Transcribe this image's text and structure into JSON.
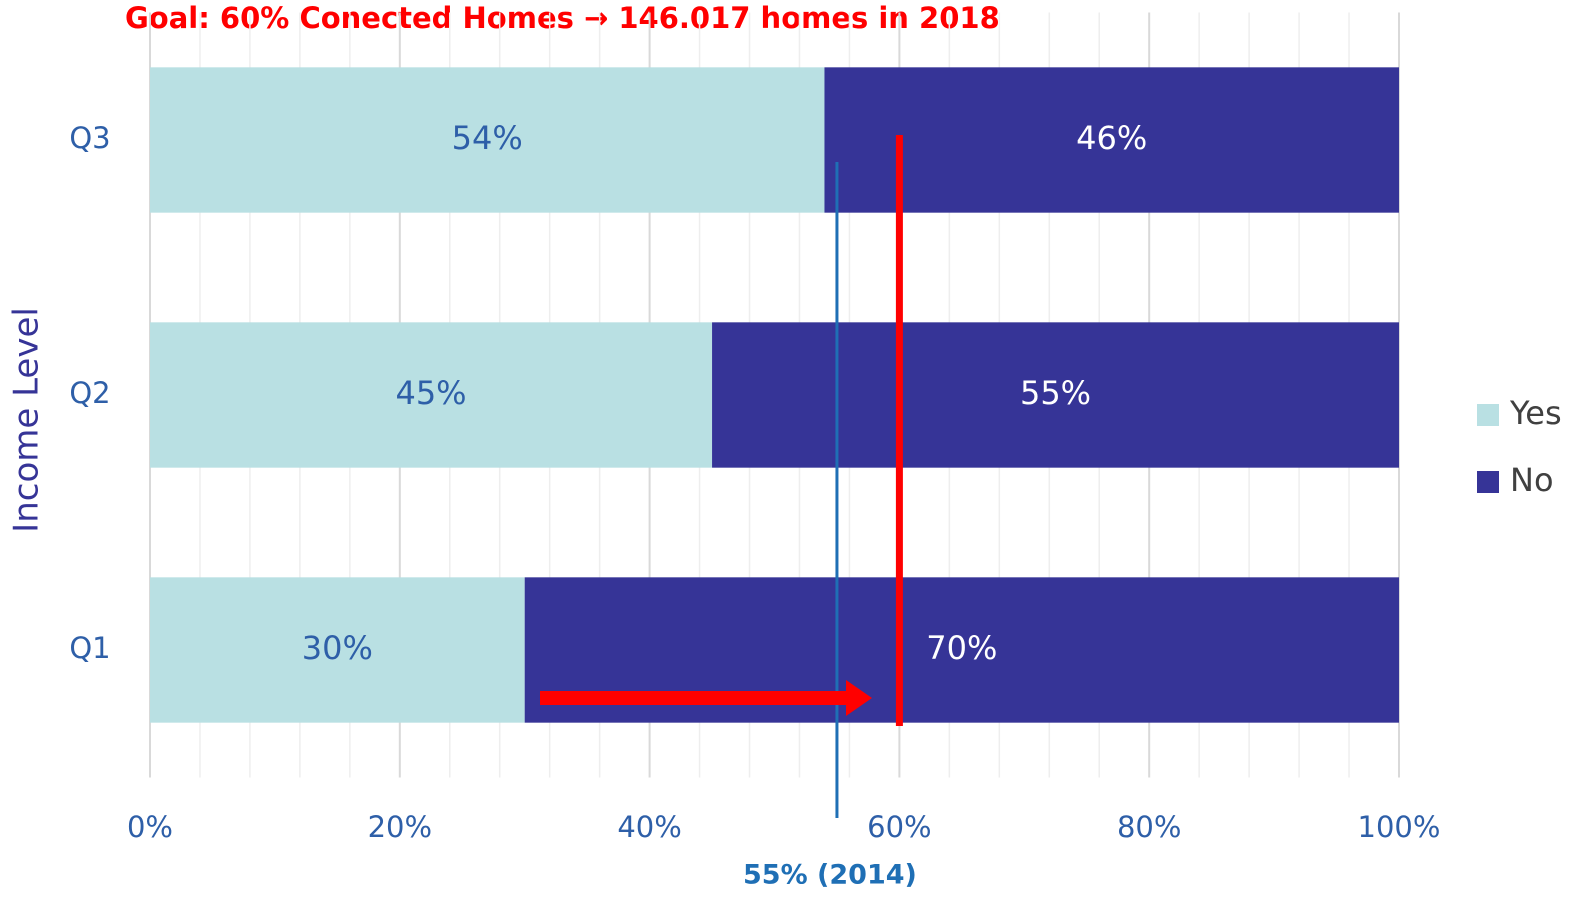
{
  "chart_data": {
    "type": "stacked_bar_horizontal",
    "title": "Goal: 60% Conected Homes → 146.017 homes in 2018",
    "y_label": "Income Level",
    "categories": [
      "Q1",
      "Q2",
      "Q3"
    ],
    "series": [
      {
        "name": "Yes",
        "color": "#b9e0e3",
        "values": [
          30,
          45,
          54
        ],
        "value_labels": [
          "30%",
          "45%",
          "54%"
        ]
      },
      {
        "name": "No",
        "color": "#363497",
        "values": [
          70,
          55,
          46
        ],
        "value_labels": [
          "70%",
          "55%",
          "46%"
        ]
      }
    ],
    "xlim": [
      0,
      100
    ],
    "xticks": [
      {
        "value": 0,
        "label": "0%"
      },
      {
        "value": 20,
        "label": "20%"
      },
      {
        "value": 40,
        "label": "40%"
      },
      {
        "value": 60,
        "label": "60%"
      },
      {
        "value": 80,
        "label": "80%"
      },
      {
        "value": 100,
        "label": "100%"
      }
    ],
    "grid": true,
    "legend": "right",
    "reference_lines": [
      {
        "value": 55,
        "label": "55% (2014)",
        "color": "#1f6fb5"
      },
      {
        "value": 60,
        "color": "#ff0000"
      }
    ]
  }
}
